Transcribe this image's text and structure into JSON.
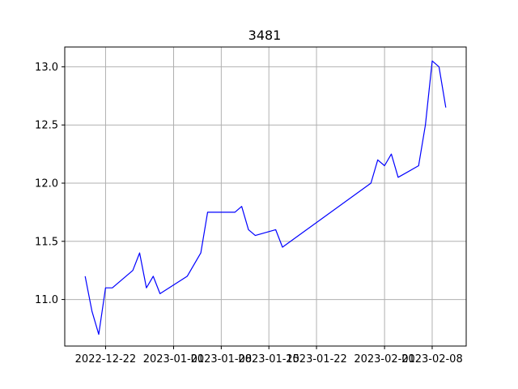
{
  "chart_data": {
    "type": "line",
    "title": "3481",
    "xlabel": "",
    "ylabel": "",
    "grid": true,
    "series_color": "#0000ff",
    "x_ticks": [
      "2022-12-22",
      "2023-01-01",
      "2023-01-08",
      "2023-01-15",
      "2023-01-22",
      "2023-02-01",
      "2023-02-08"
    ],
    "x_tick_dates": [
      "2022-12-22",
      "2023-01-01",
      "2023-01-08",
      "2023-01-15",
      "2023-01-22",
      "2023-02-01",
      "2023-02-08"
    ],
    "y_ticks": [
      "11.0",
      "11.5",
      "12.0",
      "12.5",
      "13.0"
    ],
    "y_tick_values": [
      11.0,
      11.5,
      12.0,
      12.5,
      13.0
    ],
    "xlim": [
      "2022-12-16",
      "2023-02-13"
    ],
    "ylim": [
      10.6,
      13.17
    ],
    "series": [
      {
        "dates": [
          "2022-12-19",
          "2022-12-20",
          "2022-12-21",
          "2022-12-22",
          "2022-12-23",
          "2022-12-26",
          "2022-12-27",
          "2022-12-28",
          "2022-12-29",
          "2022-12-30",
          "2023-01-03",
          "2023-01-05",
          "2023-01-06",
          "2023-01-10",
          "2023-01-11",
          "2023-01-12",
          "2023-01-13",
          "2023-01-16",
          "2023-01-17",
          "2023-01-30",
          "2023-01-31",
          "2023-02-01",
          "2023-02-02",
          "2023-02-03",
          "2023-02-06",
          "2023-02-07",
          "2023-02-08",
          "2023-02-09",
          "2023-02-10"
        ],
        "values": [
          11.2,
          10.9,
          10.7,
          11.1,
          11.1,
          11.25,
          11.4,
          11.1,
          11.2,
          11.05,
          11.2,
          11.4,
          11.75,
          11.75,
          11.8,
          11.6,
          11.55,
          11.6,
          11.45,
          12.0,
          12.2,
          12.15,
          12.25,
          12.05,
          12.15,
          12.5,
          13.05,
          13.0,
          12.65
        ]
      }
    ]
  }
}
